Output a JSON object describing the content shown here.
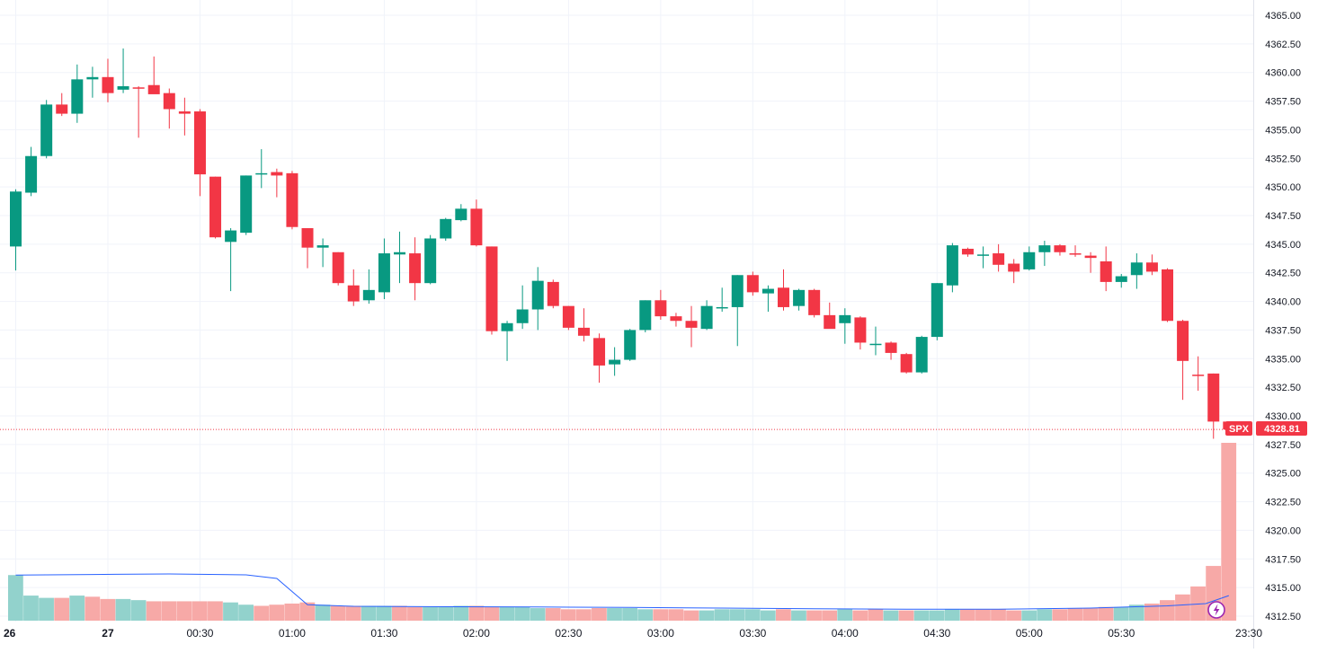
{
  "chart_data": {
    "type": "candlestick",
    "symbol": "SPX",
    "last_price": "4328.81",
    "y_range": [
      4312.5,
      4365.0
    ],
    "y_ticks": [
      "4365.00",
      "4362.50",
      "4360.00",
      "4357.50",
      "4355.00",
      "4352.50",
      "4350.00",
      "4347.50",
      "4345.00",
      "4342.50",
      "4340.00",
      "4337.50",
      "4335.00",
      "4332.50",
      "4330.00",
      "4327.50",
      "4325.00",
      "4322.50",
      "4320.00",
      "4317.50",
      "4315.00",
      "4312.50"
    ],
    "x_ticks": [
      {
        "label": "26",
        "index": 0,
        "bold": true
      },
      {
        "label": "27",
        "index": 6,
        "bold": true
      },
      {
        "label": "00:30",
        "index": 12,
        "bold": false
      },
      {
        "label": "01:00",
        "index": 18,
        "bold": false
      },
      {
        "label": "01:30",
        "index": 24,
        "bold": false
      },
      {
        "label": "02:00",
        "index": 30,
        "bold": false
      },
      {
        "label": "02:30",
        "index": 36,
        "bold": false
      },
      {
        "label": "03:00",
        "index": 42,
        "bold": false
      },
      {
        "label": "03:30",
        "index": 48,
        "bold": false
      },
      {
        "label": "04:00",
        "index": 54,
        "bold": false
      },
      {
        "label": "04:30",
        "index": 60,
        "bold": false
      },
      {
        "label": "05:00",
        "index": 66,
        "bold": false
      },
      {
        "label": "05:30",
        "index": 72,
        "bold": false
      },
      {
        "label": "23:30",
        "index": 80.3,
        "bold": false
      }
    ],
    "ohlc": [
      [
        4344.8,
        4349.8,
        4342.7,
        4349.6
      ],
      [
        4349.5,
        4353.5,
        4349.2,
        4352.7
      ],
      [
        4352.7,
        4357.6,
        4352.5,
        4357.2
      ],
      [
        4357.2,
        4358.2,
        4356.2,
        4356.4
      ],
      [
        4356.4,
        4360.7,
        4355.6,
        4359.4
      ],
      [
        4359.4,
        4360.5,
        4357.8,
        4359.6
      ],
      [
        4359.6,
        4361.2,
        4357.4,
        4358.2
      ],
      [
        4358.5,
        4362.1,
        4358.2,
        4358.8
      ],
      [
        4358.7,
        4358.8,
        4354.3,
        4358.6
      ],
      [
        4358.9,
        4361.4,
        4358.2,
        4358.1
      ],
      [
        4358.2,
        4358.6,
        4355.1,
        4356.8
      ],
      [
        4356.6,
        4357.8,
        4354.5,
        4356.4
      ],
      [
        4356.6,
        4356.8,
        4349.2,
        4351.1
      ],
      [
        4350.9,
        4350.9,
        4345.5,
        4345.6
      ],
      [
        4345.2,
        4346.4,
        4340.9,
        4346.2
      ],
      [
        4346.0,
        4351.0,
        4345.8,
        4351.0
      ],
      [
        4351.1,
        4353.3,
        4349.9,
        4351.2
      ],
      [
        4351.3,
        4351.6,
        4349.1,
        4351.0
      ],
      [
        4351.2,
        4351.4,
        4346.3,
        4346.5
      ],
      [
        4346.4,
        4346.4,
        4342.9,
        4344.7
      ],
      [
        4344.7,
        4345.5,
        4343.0,
        4344.9
      ],
      [
        4344.3,
        4344.3,
        4341.4,
        4341.6
      ],
      [
        4341.4,
        4342.8,
        4339.6,
        4340.0
      ],
      [
        4340.1,
        4342.8,
        4339.8,
        4341.0
      ],
      [
        4340.8,
        4345.5,
        4340.2,
        4344.2
      ],
      [
        4344.1,
        4346.1,
        4341.6,
        4344.3
      ],
      [
        4344.2,
        4345.6,
        4340.1,
        4341.6
      ],
      [
        4341.6,
        4345.8,
        4341.5,
        4345.5
      ],
      [
        4345.5,
        4347.3,
        4345.3,
        4347.2
      ],
      [
        4347.1,
        4348.5,
        4347.0,
        4348.1
      ],
      [
        4348.1,
        4348.9,
        4344.8,
        4344.9
      ],
      [
        4344.8,
        4344.8,
        4337.1,
        4337.4
      ],
      [
        4337.4,
        4338.3,
        4334.8,
        4338.1
      ],
      [
        4338.1,
        4341.4,
        4337.6,
        4339.3
      ],
      [
        4339.3,
        4343.0,
        4337.5,
        4341.8
      ],
      [
        4341.7,
        4341.9,
        4339.4,
        4339.6
      ],
      [
        4339.6,
        4339.6,
        4337.5,
        4337.7
      ],
      [
        4337.7,
        4339.4,
        4336.5,
        4337.0
      ],
      [
        4336.8,
        4337.2,
        4332.9,
        4334.4
      ],
      [
        4334.5,
        4336.0,
        4333.5,
        4334.9
      ],
      [
        4334.9,
        4337.6,
        4334.8,
        4337.5
      ],
      [
        4337.5,
        4340.1,
        4337.3,
        4340.1
      ],
      [
        4340.1,
        4341.0,
        4338.4,
        4338.7
      ],
      [
        4338.7,
        4339.0,
        4337.8,
        4338.3
      ],
      [
        4338.3,
        4339.6,
        4336.0,
        4337.7
      ],
      [
        4337.6,
        4340.1,
        4337.5,
        4339.6
      ],
      [
        4339.4,
        4341.2,
        4339.1,
        4339.5
      ],
      [
        4339.5,
        4342.3,
        4336.1,
        4342.3
      ],
      [
        4342.3,
        4342.6,
        4340.5,
        4340.8
      ],
      [
        4340.7,
        4341.4,
        4339.1,
        4341.1
      ],
      [
        4341.2,
        4342.8,
        4339.2,
        4339.5
      ],
      [
        4339.6,
        4341.1,
        4339.2,
        4341.0
      ],
      [
        4341.0,
        4341.1,
        4338.6,
        4338.8
      ],
      [
        4338.8,
        4339.9,
        4337.7,
        4337.6
      ],
      [
        4338.1,
        4339.4,
        4336.3,
        4338.8
      ],
      [
        4338.6,
        4338.7,
        4335.8,
        4336.4
      ],
      [
        4336.3,
        4337.8,
        4335.3,
        4336.3
      ],
      [
        4336.4,
        4336.5,
        4334.9,
        4335.5
      ],
      [
        4335.4,
        4335.5,
        4333.7,
        4333.8
      ],
      [
        4333.8,
        4337.0,
        4333.7,
        4336.9
      ],
      [
        4336.9,
        4341.6,
        4336.6,
        4341.6
      ],
      [
        4341.4,
        4345.1,
        4340.8,
        4344.9
      ],
      [
        4344.6,
        4344.7,
        4343.9,
        4344.1
      ],
      [
        4344.0,
        4344.8,
        4342.9,
        4344.1
      ],
      [
        4344.2,
        4345.0,
        4342.6,
        4343.2
      ],
      [
        4343.3,
        4343.7,
        4341.6,
        4342.6
      ],
      [
        4342.8,
        4344.8,
        4342.7,
        4344.3
      ],
      [
        4344.3,
        4345.3,
        4343.1,
        4344.9
      ],
      [
        4344.9,
        4345.0,
        4344.0,
        4344.3
      ],
      [
        4344.2,
        4344.9,
        4343.9,
        4344.1
      ],
      [
        4344.0,
        4344.3,
        4342.5,
        4343.8
      ],
      [
        4343.5,
        4344.8,
        4340.9,
        4341.7
      ],
      [
        4341.7,
        4342.4,
        4341.2,
        4342.2
      ],
      [
        4342.3,
        4344.2,
        4341.1,
        4343.4
      ],
      [
        4343.4,
        4344.1,
        4342.3,
        4342.6
      ],
      [
        4342.8,
        4342.9,
        4338.2,
        4338.3
      ],
      [
        4338.3,
        4338.4,
        4331.4,
        4334.8
      ],
      [
        4333.6,
        4335.2,
        4332.2,
        4333.5
      ],
      [
        4333.7,
        4333.7,
        4328.0,
        4329.5
      ],
      [
        4329.5,
        4329.5,
        4328.8,
        4328.81
      ]
    ],
    "volume": [
      [
        40,
        1
      ],
      [
        22,
        0
      ],
      [
        20,
        0
      ],
      [
        20,
        -1
      ],
      [
        22,
        1
      ],
      [
        21,
        -1
      ],
      [
        19,
        -1
      ],
      [
        19,
        1
      ],
      [
        18,
        0
      ],
      [
        17,
        -1
      ],
      [
        17,
        -1
      ],
      [
        17,
        -1
      ],
      [
        17,
        -1
      ],
      [
        17,
        -1
      ],
      [
        16,
        1
      ],
      [
        14,
        1
      ],
      [
        13,
        -1
      ],
      [
        14,
        -1
      ],
      [
        15,
        -1
      ],
      [
        16,
        -1
      ],
      [
        14,
        0
      ],
      [
        13,
        -1
      ],
      [
        13,
        -1
      ],
      [
        13,
        0
      ],
      [
        13,
        1
      ],
      [
        13,
        -1
      ],
      [
        12,
        -1
      ],
      [
        12,
        1
      ],
      [
        12,
        1
      ],
      [
        13,
        1
      ],
      [
        13,
        -1
      ],
      [
        12,
        -1
      ],
      [
        12,
        0
      ],
      [
        12,
        1
      ],
      [
        11,
        1
      ],
      [
        11,
        -1
      ],
      [
        10,
        -1
      ],
      [
        10,
        -1
      ],
      [
        11,
        -1
      ],
      [
        11,
        1
      ],
      [
        11,
        1
      ],
      [
        10,
        1
      ],
      [
        10,
        -1
      ],
      [
        10,
        -1
      ],
      [
        9,
        -1
      ],
      [
        9,
        1
      ],
      [
        10,
        1
      ],
      [
        10,
        0
      ],
      [
        10,
        1
      ],
      [
        9,
        1
      ],
      [
        10,
        -1
      ],
      [
        9,
        1
      ],
      [
        9,
        -1
      ],
      [
        9,
        -1
      ],
      [
        10,
        0
      ],
      [
        9,
        -1
      ],
      [
        10,
        -1
      ],
      [
        9,
        1
      ],
      [
        9,
        -1
      ],
      [
        9,
        1
      ],
      [
        9,
        1
      ],
      [
        10,
        1
      ],
      [
        10,
        -1
      ],
      [
        10,
        -1
      ],
      [
        10,
        -1
      ],
      [
        9,
        -1
      ],
      [
        9,
        1
      ],
      [
        10,
        1
      ],
      [
        10,
        -1
      ],
      [
        11,
        -1
      ],
      [
        11,
        -1
      ],
      [
        12,
        -1
      ],
      [
        12,
        1
      ],
      [
        14,
        1
      ],
      [
        15,
        -1
      ],
      [
        18,
        -1
      ],
      [
        23,
        -1
      ],
      [
        30,
        -1
      ],
      [
        48,
        -1
      ],
      [
        156,
        -1
      ]
    ],
    "volume_ma": [
      [
        0,
        40
      ],
      [
        5,
        40.5
      ],
      [
        10,
        41
      ],
      [
        15,
        40.2
      ],
      [
        17,
        37
      ],
      [
        19,
        14
      ],
      [
        22,
        12.6
      ],
      [
        28,
        12.2
      ],
      [
        34,
        12
      ],
      [
        40,
        11.6
      ],
      [
        46,
        11
      ],
      [
        52,
        10.5
      ],
      [
        58,
        10
      ],
      [
        64,
        10
      ],
      [
        70,
        11
      ],
      [
        75,
        13
      ],
      [
        77.5,
        15
      ],
      [
        79,
        22
      ]
    ],
    "colors": {
      "up": "#089981",
      "down": "#f23645",
      "volume_up": "#92d2cc",
      "volume_down": "#f7a9a7",
      "ma": "#2962ff",
      "grid": "#f0f3fa",
      "axis_text": "#131722"
    }
  },
  "badge": {
    "symbol": "SPX",
    "price": "4328.81"
  },
  "icons": {
    "flash": "lightning-icon"
  }
}
